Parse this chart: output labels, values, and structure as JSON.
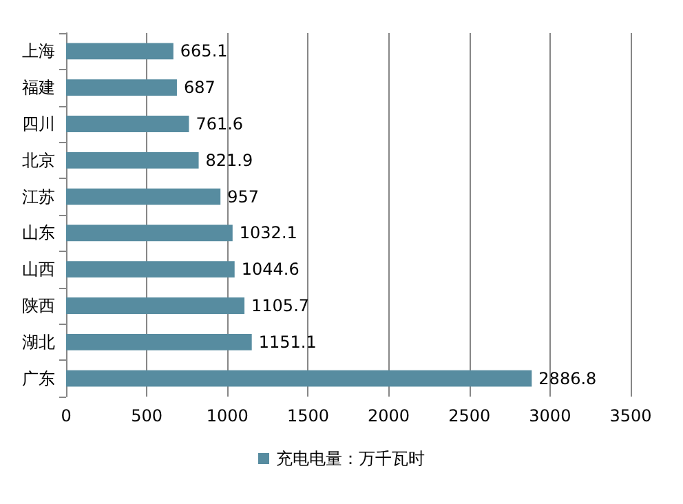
{
  "chart_data": {
    "type": "bar",
    "orientation": "horizontal",
    "categories": [
      "上海",
      "福建",
      "四川",
      "北京",
      "江苏",
      "山东",
      "山西",
      "陕西",
      "湖北",
      "广东"
    ],
    "series": [
      {
        "name": "充电电量：万千瓦时",
        "color": "#578ca0",
        "values": [
          665.1,
          687,
          761.6,
          821.9,
          957,
          1032.1,
          1044.6,
          1105.7,
          1151.1,
          2886.8
        ]
      }
    ],
    "xlim": [
      0,
      3500
    ],
    "xticks": [
      0,
      500,
      1000,
      1500,
      2000,
      2500,
      3000,
      3500
    ],
    "grid": "x",
    "legend": "bottom",
    "data_labels": true
  }
}
